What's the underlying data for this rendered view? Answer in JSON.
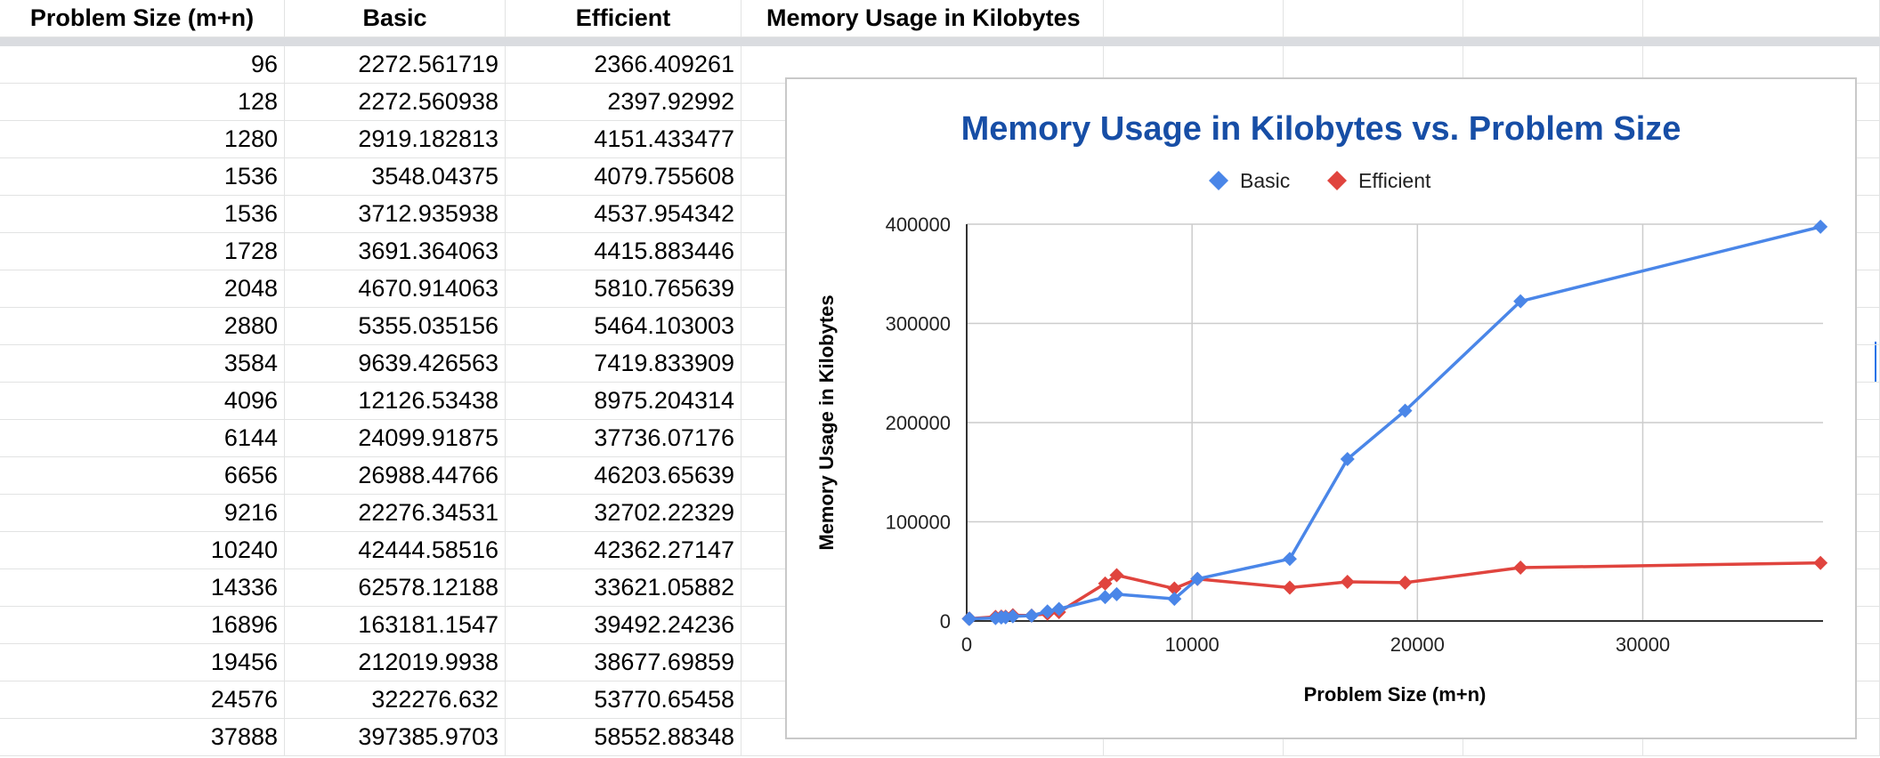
{
  "sheet": {
    "headers": [
      "Problem Size (m+n)",
      "Basic",
      "Efficient",
      "Memory Usage in Kilobytes"
    ],
    "rows": [
      [
        "96",
        "2272.561719",
        "2366.409261"
      ],
      [
        "128",
        "2272.560938",
        "2397.92992"
      ],
      [
        "1280",
        "2919.182813",
        "4151.433477"
      ],
      [
        "1536",
        "3548.04375",
        "4079.755608"
      ],
      [
        "1536",
        "3712.935938",
        "4537.954342"
      ],
      [
        "1728",
        "3691.364063",
        "4415.883446"
      ],
      [
        "2048",
        "4670.914063",
        "5810.765639"
      ],
      [
        "2880",
        "5355.035156",
        "5464.103003"
      ],
      [
        "3584",
        "9639.426563",
        "7419.833909"
      ],
      [
        "4096",
        "12126.53438",
        "8975.204314"
      ],
      [
        "6144",
        "24099.91875",
        "37736.07176"
      ],
      [
        "6656",
        "26988.44766",
        "46203.65639"
      ],
      [
        "9216",
        "22276.34531",
        "32702.22329"
      ],
      [
        "10240",
        "42444.58516",
        "42362.27147"
      ],
      [
        "14336",
        "62578.12188",
        "33621.05882"
      ],
      [
        "16896",
        "163181.1547",
        "39492.24236"
      ],
      [
        "19456",
        "212019.9938",
        "38677.69859"
      ],
      [
        "24576",
        "322276.632",
        "53770.65458"
      ],
      [
        "37888",
        "397385.9703",
        "58552.88348"
      ]
    ]
  },
  "chart_data": {
    "type": "line",
    "title": "Memory Usage in Kilobytes vs. Problem Size",
    "xlabel": "Problem Size (m+n)",
    "ylabel": "Memory Usage in Kilobytes",
    "xlim": [
      0,
      38000
    ],
    "ylim": [
      0,
      400000
    ],
    "xticks": [
      "0",
      "10000",
      "20000",
      "30000"
    ],
    "yticks": [
      "0",
      "100000",
      "200000",
      "300000",
      "400000"
    ],
    "grid": true,
    "legend_position": "top",
    "x": [
      96,
      128,
      1280,
      1536,
      1536,
      1728,
      2048,
      2880,
      3584,
      4096,
      6144,
      6656,
      9216,
      10240,
      14336,
      16896,
      19456,
      24576,
      37888
    ],
    "series": [
      {
        "name": "Basic",
        "color": "#4a86e8",
        "marker": "diamond",
        "values": [
          2272.561719,
          2272.560938,
          2919.182813,
          3548.04375,
          3712.935938,
          3691.364063,
          4670.914063,
          5355.035156,
          9639.426563,
          12126.53438,
          24099.91875,
          26988.44766,
          22276.34531,
          42444.58516,
          62578.12188,
          163181.1547,
          212019.9938,
          322276.632,
          397385.9703
        ]
      },
      {
        "name": "Efficient",
        "color": "#e0443e",
        "marker": "diamond",
        "values": [
          2366.409261,
          2397.92992,
          4151.433477,
          4079.755608,
          4537.954342,
          4415.883446,
          5810.765639,
          5464.103003,
          7419.833909,
          8975.204314,
          37736.07176,
          46203.65639,
          32702.22329,
          42362.27147,
          33621.05882,
          39492.24236,
          38677.69859,
          53770.65458,
          58552.88348
        ]
      }
    ]
  }
}
